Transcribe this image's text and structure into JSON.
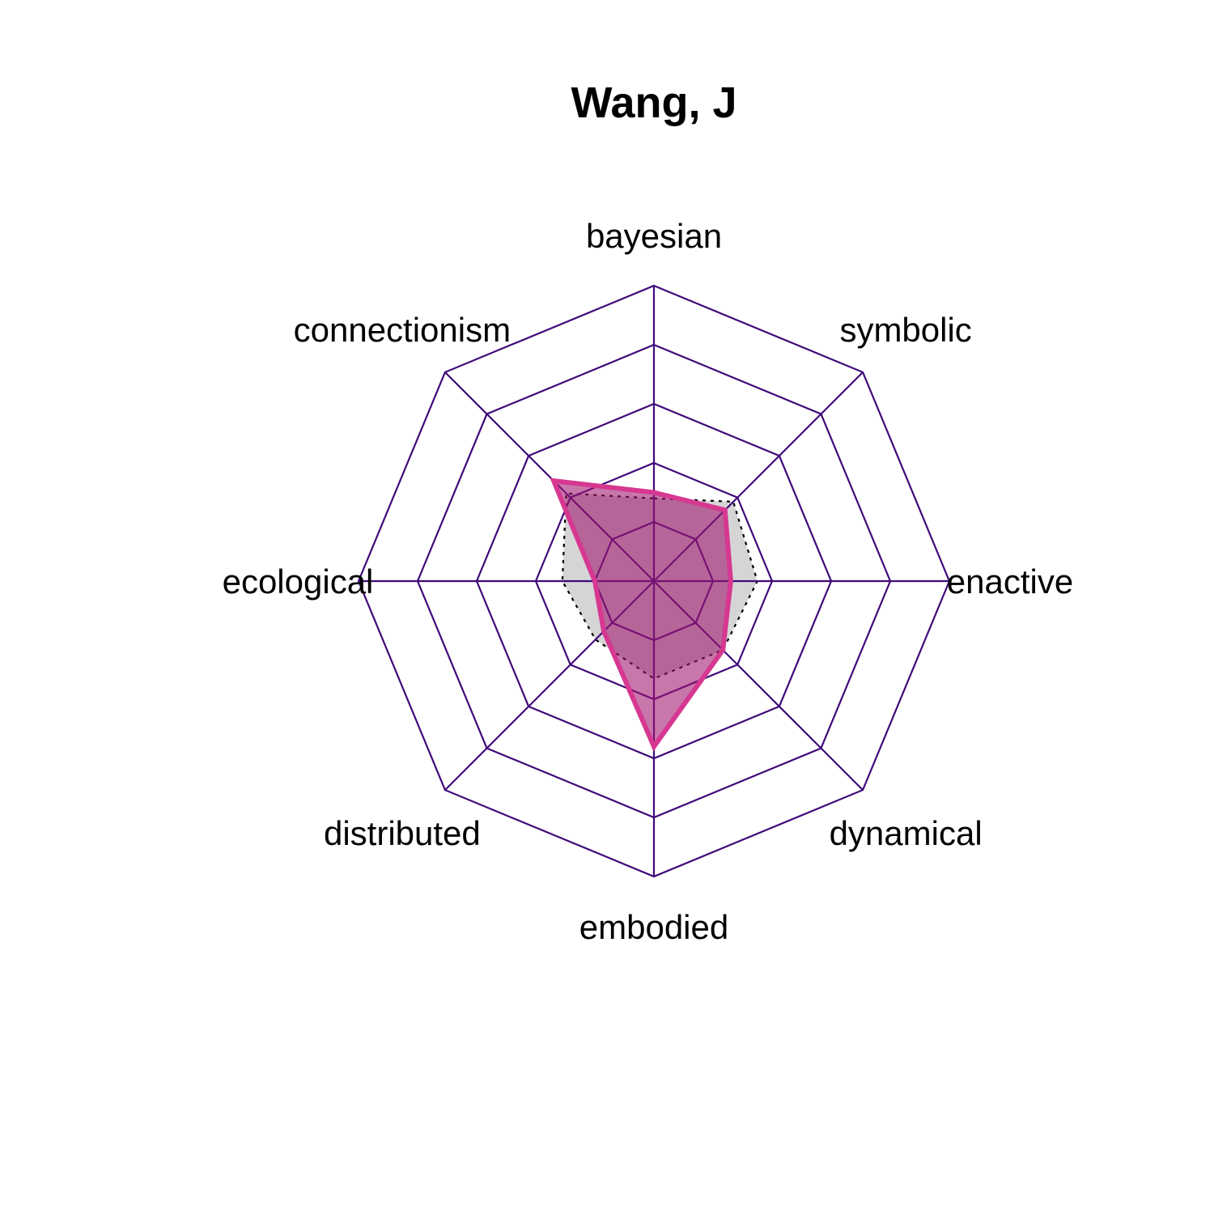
{
  "chart_data": {
    "type": "radar",
    "title": "Wang, J",
    "axes": [
      "bayesian",
      "symbolic",
      "enactive",
      "dynamical",
      "embodied",
      "distributed",
      "ecological",
      "connectionism"
    ],
    "rings": 5,
    "range": [
      0,
      1
    ],
    "series": [
      {
        "values": [
          0.3,
          0.34,
          0.26,
          0.33,
          0.56,
          0.24,
          0.2,
          0.48
        ],
        "color": "#D63891",
        "fill": "rgba(160, 20, 110, 0.58)",
        "style": "solid"
      },
      {
        "values": [
          0.28,
          0.38,
          0.35,
          0.33,
          0.33,
          0.28,
          0.31,
          0.42
        ],
        "color": "#000000",
        "fill": "rgba(185, 185, 185, 0.6)",
        "style": "dotted"
      }
    ],
    "grid_color": "#3F0A7A"
  }
}
